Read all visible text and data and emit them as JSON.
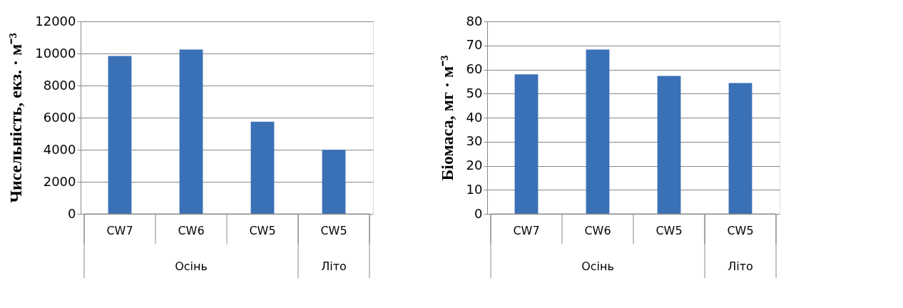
{
  "chart_data": [
    {
      "type": "bar",
      "ylabel": "Чисельність, екз. · м⁻³",
      "categories": [
        "CW7",
        "CW6",
        "CW5",
        "CW5"
      ],
      "series": [
        {
          "color": "#3a70b5",
          "values": [
            9850,
            10250,
            5750,
            4000
          ]
        }
      ],
      "ylim": [
        0,
        12000
      ],
      "yticks": [
        0,
        2000,
        4000,
        6000,
        8000,
        10000,
        12000
      ],
      "grid": "y",
      "annotations": [
        "Осінь",
        "Літо"
      ]
    },
    {
      "type": "bar",
      "ylabel": "Біомаса, мг · м⁻³",
      "categories": [
        "CW7",
        "CW6",
        "CW5",
        "CW5"
      ],
      "series": [
        {
          "color": "#3a70b5",
          "values": [
            58,
            68.3,
            57.3,
            54.4
          ]
        }
      ],
      "ylim": [
        0,
        80
      ],
      "yticks": [
        0,
        10,
        20,
        30,
        40,
        50,
        60,
        70,
        80
      ],
      "grid": "y",
      "annotations": [
        "Осінь",
        "Літо"
      ]
    }
  ]
}
